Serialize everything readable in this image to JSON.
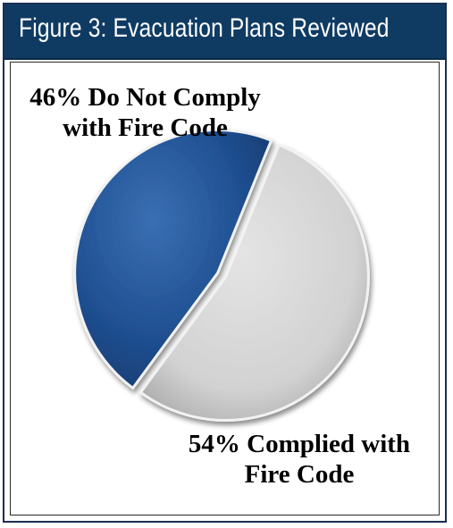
{
  "title": "Figure 3: Evacuation Plans Reviewed",
  "chart_data": {
    "type": "pie",
    "slices": [
      {
        "label_line1": "46% Do Not Comply",
        "label_line2": "with Fire Code",
        "value": 46,
        "color": "#1f4f91"
      },
      {
        "label_line1": "54% Complied with",
        "label_line2": "Fire Code",
        "value": 54,
        "color": "#d4d4d4"
      }
    ]
  }
}
